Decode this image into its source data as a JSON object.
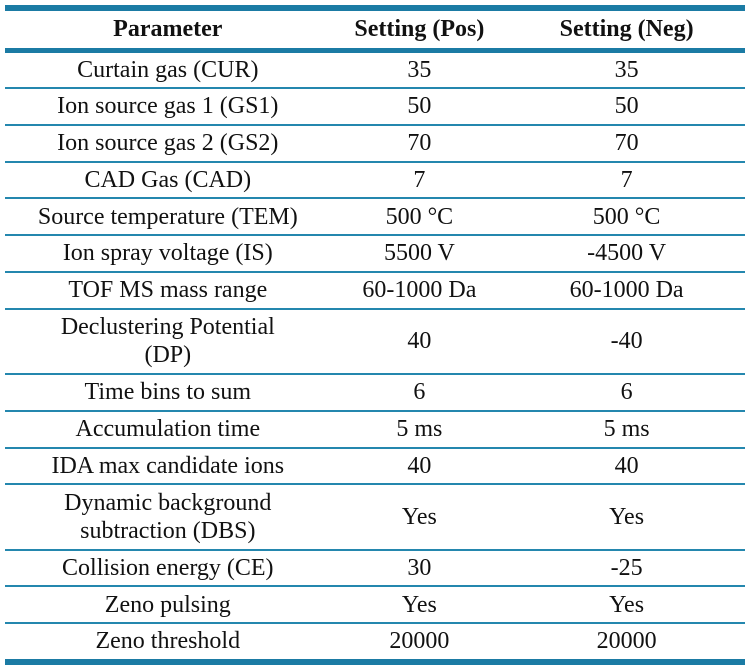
{
  "table": {
    "columns": [
      "Parameter",
      "Setting (Pos)",
      "Setting (Neg)"
    ],
    "rows": [
      {
        "parameter": "Curtain gas (CUR)",
        "pos": "35",
        "neg": "35"
      },
      {
        "parameter": "Ion source gas 1 (GS1)",
        "pos": "50",
        "neg": "50"
      },
      {
        "parameter": "Ion source gas 2 (GS2)",
        "pos": "70",
        "neg": "70"
      },
      {
        "parameter": "CAD Gas (CAD)",
        "pos": "7",
        "neg": "7"
      },
      {
        "parameter": "Source temperature (TEM)",
        "pos": "500 °C",
        "neg": "500 °C"
      },
      {
        "parameter": "Ion spray voltage (IS)",
        "pos": "5500 V",
        "neg": "-4500 V"
      },
      {
        "parameter": "TOF MS mass range",
        "pos": "60-1000 Da",
        "neg": "60-1000 Da"
      },
      {
        "parameter": "Declustering Potential\n(DP)",
        "pos": "40",
        "neg": "-40"
      },
      {
        "parameter": "Time bins to sum",
        "pos": "6",
        "neg": "6"
      },
      {
        "parameter": "Accumulation time",
        "pos": "5 ms",
        "neg": "5 ms"
      },
      {
        "parameter": "IDA max candidate ions",
        "pos": "40",
        "neg": "40"
      },
      {
        "parameter": "Dynamic background\nsubtraction (DBS)",
        "pos": "Yes",
        "neg": "Yes"
      },
      {
        "parameter": "Collision energy (CE)",
        "pos": "30",
        "neg": "-25"
      },
      {
        "parameter": "Zeno pulsing",
        "pos": "Yes",
        "neg": "Yes"
      },
      {
        "parameter": "Zeno threshold",
        "pos": "20000",
        "neg": "20000"
      }
    ]
  },
  "colors": {
    "rule_thick": "#1b7ba4",
    "rule_thin": "#2487ae",
    "text": "#111111",
    "background": "#ffffff"
  }
}
